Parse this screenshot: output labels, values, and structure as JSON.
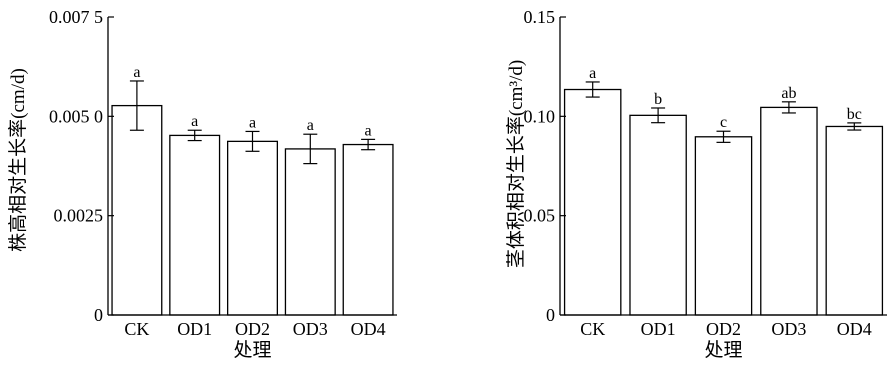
{
  "chart_data": [
    {
      "type": "bar",
      "categories": [
        "CK",
        "OD1",
        "OD2",
        "OD3",
        "OD4"
      ],
      "values": [
        0.00527,
        0.00452,
        0.00437,
        0.00418,
        0.00429
      ],
      "errors": [
        0.00062,
        0.00013,
        0.00025,
        0.00037,
        0.00013
      ],
      "significance": [
        "a",
        "a",
        "a",
        "a",
        "a"
      ],
      "xlabel": "处理",
      "ylabel": "株高相对生长率(cm/d)",
      "ylim": [
        0,
        0.0075
      ],
      "yticks": [
        0,
        0.0025,
        0.005,
        0.0075
      ],
      "ytick_labels": [
        "0",
        "0.0025",
        "0.005 0",
        "0.007 5"
      ],
      "grid": false
    },
    {
      "type": "bar",
      "categories": [
        "CK",
        "OD1",
        "OD2",
        "OD3",
        "OD4"
      ],
      "values": [
        0.1135,
        0.1005,
        0.0897,
        0.1045,
        0.0949
      ],
      "errors": [
        0.0038,
        0.0037,
        0.0028,
        0.0028,
        0.0018
      ],
      "significance": [
        "a",
        "b",
        "c",
        "ab",
        "bc"
      ],
      "xlabel": "处理",
      "ylabel": "茎体积相对生长率(cm³/d)",
      "ylim": [
        0,
        0.15
      ],
      "yticks": [
        0,
        0.05,
        0.1,
        0.15
      ],
      "ytick_labels": [
        "0",
        "0.05",
        "0.10",
        "0.15"
      ],
      "grid": false
    }
  ]
}
